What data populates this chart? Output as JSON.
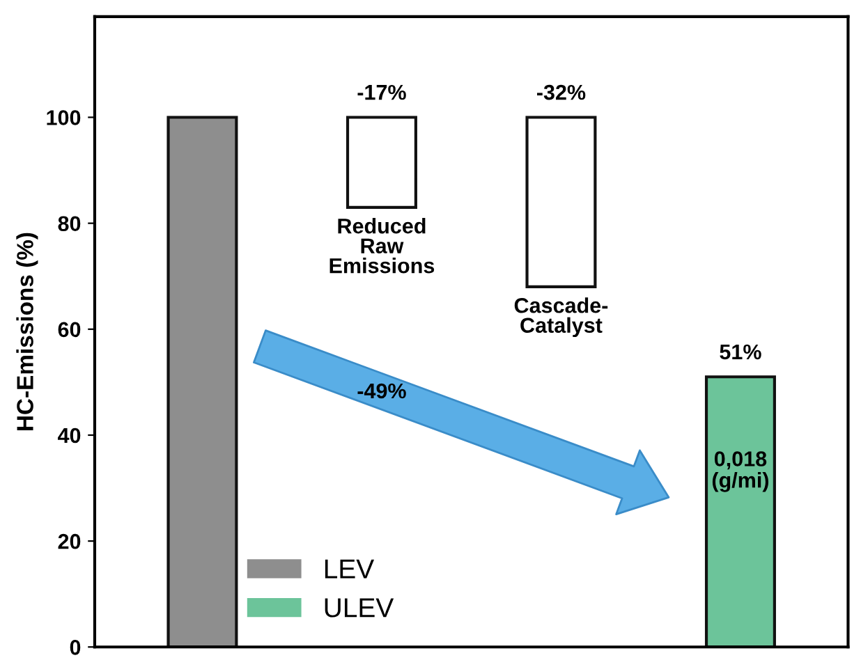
{
  "chart_data": {
    "type": "bar",
    "ylabel": "HC-Emissions (%)",
    "categories": [
      null,
      "Reduced\nRaw\nEmissions",
      "Cascade-\nCatalyst",
      null
    ],
    "series": [
      {
        "name": "LEV",
        "color": "#8e8e8e",
        "values": [
          100,
          null,
          null,
          null
        ]
      },
      {
        "color": "#ffffff",
        "values": [
          null,
          17,
          32,
          null
        ],
        "base": [
          null,
          83,
          68,
          null
        ]
      },
      {
        "name": "ULEV",
        "color": "#6cc49a",
        "values": [
          null,
          null,
          null,
          51
        ]
      }
    ],
    "value_labels": [
      null,
      "-17%",
      "-32%",
      "51%"
    ],
    "annotations": [
      "-49%",
      "0,018\n(g/mi)"
    ],
    "ylim": [
      0,
      119
    ],
    "yticks": [
      0,
      20,
      40,
      60,
      80,
      100
    ],
    "tick_labels": "y",
    "grid": false,
    "legend": "bottom left"
  }
}
